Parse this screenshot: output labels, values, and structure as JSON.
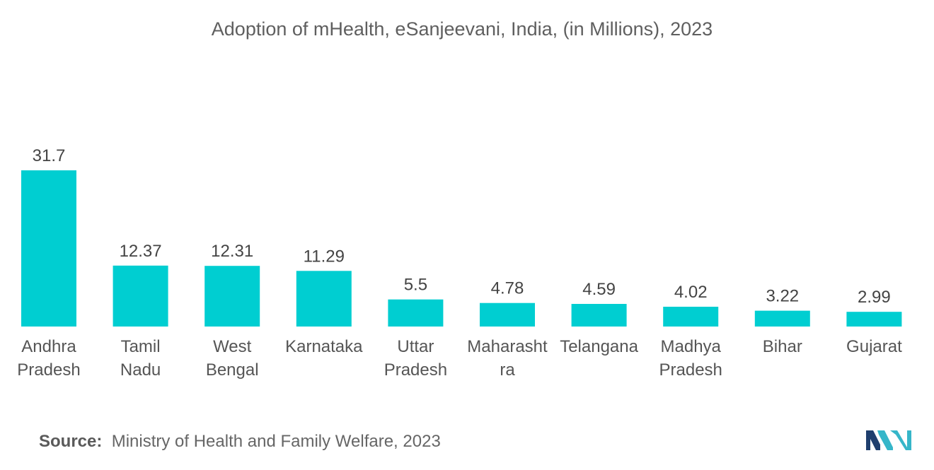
{
  "chart_data": {
    "type": "bar",
    "title": "Adoption of mHealth, eSanjeevani, India, (in Millions), 2023",
    "categories": [
      [
        "Andhra",
        "Pradesh"
      ],
      [
        "Tamil",
        "Nadu"
      ],
      [
        "West",
        "Bengal"
      ],
      [
        "Karnataka"
      ],
      [
        "Uttar",
        "Pradesh"
      ],
      [
        "Maharasht",
        "ra"
      ],
      [
        "Telangana"
      ],
      [
        "Madhya",
        "Pradesh"
      ],
      [
        "Bihar"
      ],
      [
        "Gujarat"
      ]
    ],
    "values": [
      31.7,
      12.37,
      12.31,
      11.29,
      5.5,
      4.78,
      4.59,
      4.02,
      3.22,
      2.99
    ],
    "value_labels": [
      "31.7",
      "12.37",
      "12.31",
      "11.29",
      "5.5",
      "4.78",
      "4.59",
      "4.02",
      "3.22",
      "2.99"
    ],
    "xlabel": "",
    "ylabel": "",
    "ylim": [
      0,
      31.7
    ],
    "grid": false,
    "bar_color": "#00CED1"
  },
  "source": {
    "label": "Source:",
    "text": "Ministry of Health and Family Welfare, 2023"
  },
  "logo": {
    "name": "mordor-intelligence-logo",
    "colors": [
      "#1f3f6e",
      "#36b6c9"
    ]
  }
}
